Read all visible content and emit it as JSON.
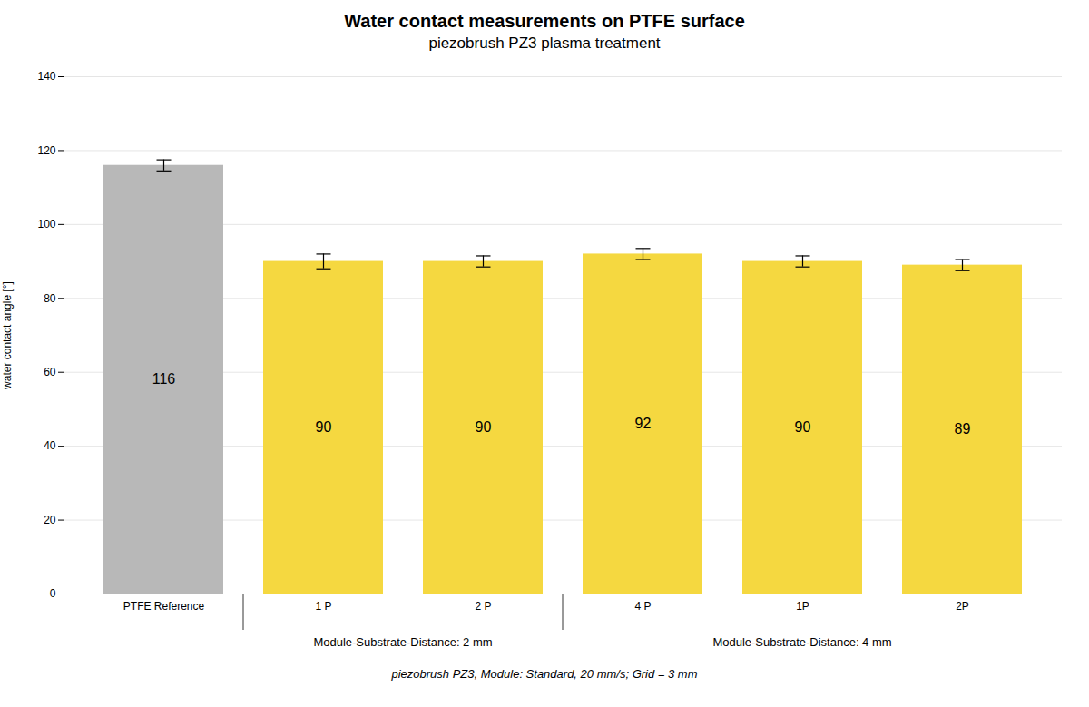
{
  "chart_data": {
    "type": "bar",
    "title": "Water contact measurements on PTFE surface",
    "subtitle": "piezobrush PZ3 plasma treatment",
    "ylabel": "water contact angle [°]",
    "categories": [
      "PTFE Reference",
      "1 P",
      "2 P",
      "4 P",
      "1P",
      "2P"
    ],
    "values": [
      116,
      90,
      90,
      92,
      90,
      89
    ],
    "errors": [
      1.5,
      2.0,
      1.5,
      1.5,
      1.5,
      1.5
    ],
    "colors": [
      "#b8b8b8",
      "#f5d840",
      "#f5d840",
      "#f5d840",
      "#f5d840",
      "#f5d840"
    ],
    "ylim": [
      0,
      140
    ],
    "yticks": [
      0,
      20,
      40,
      60,
      80,
      100,
      120,
      140
    ],
    "grid": true,
    "data_labels": true,
    "groups": [
      {
        "label": "Module-Substrate-Distance: 2 mm",
        "categories": [
          "1 P",
          "2 P"
        ]
      },
      {
        "label": "Module-Substrate-Distance: 4 mm",
        "categories": [
          "4 P",
          "1P",
          "2P"
        ]
      }
    ],
    "footnote": "piezobrush PZ3, Module: Standard, 20 mm/s; Grid = 3 mm"
  }
}
